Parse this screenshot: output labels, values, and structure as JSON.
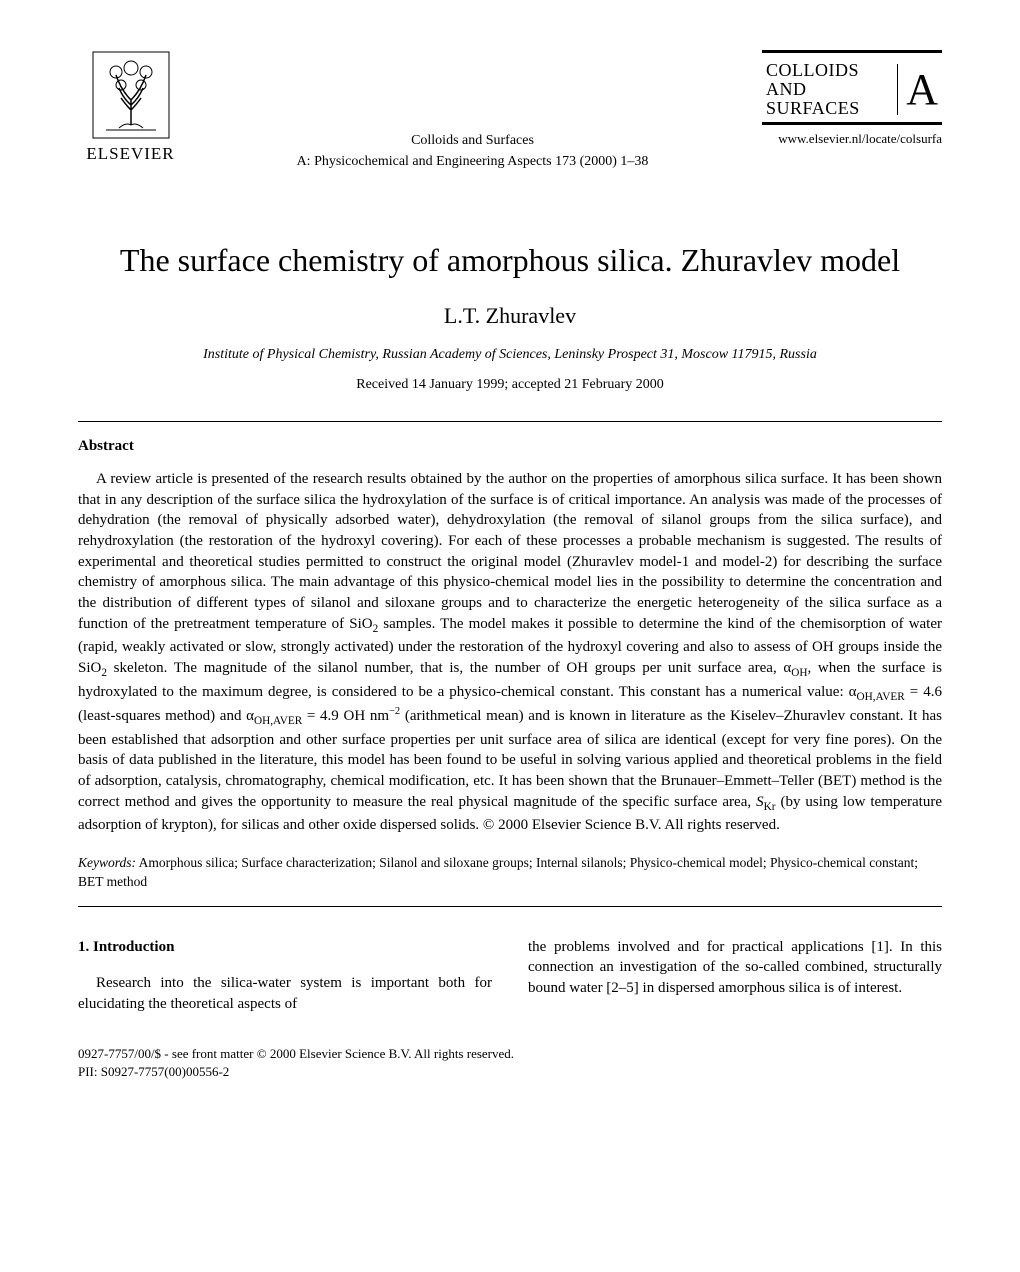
{
  "header": {
    "publisher": "ELSEVIER",
    "journal_line1": "Colloids and Surfaces",
    "journal_line2": "A: Physicochemical and Engineering Aspects 173 (2000) 1–38",
    "logo_line1": "COLLOIDS",
    "logo_line2": "AND",
    "logo_line3": "SURFACES",
    "logo_letter": "A",
    "url": "www.elsevier.nl/locate/colsurfa"
  },
  "article": {
    "title": "The surface chemistry of amorphous silica. Zhuravlev model",
    "author": "L.T. Zhuravlev",
    "affiliation": "Institute of Physical Chemistry, Russian Academy of Sciences, Leninsky Prospect 31, Moscow 117915, Russia",
    "dates": "Received 14 January 1999; accepted 21 February 2000"
  },
  "abstract": {
    "heading": "Abstract",
    "body": "A review article is presented of the research results obtained by the author on the properties of amorphous silica surface. It has been shown that in any description of the surface silica the hydroxylation of the surface is of critical importance. An analysis was made of the processes of dehydration (the removal of physically adsorbed water), dehydroxylation (the removal of silanol groups from the silica surface), and rehydroxylation (the restoration of the hydroxyl covering). For each of these processes a probable mechanism is suggested. The results of experimental and theoretical studies permitted to construct the original model (Zhuravlev model-1 and model-2) for describing the surface chemistry of amorphous silica. The main advantage of this physico-chemical model lies in the possibility to determine the concentration and the distribution of different types of silanol and siloxane groups and to characterize the energetic heterogeneity of the silica surface as a function of the pretreatment temperature of SiO₂ samples. The model makes it possible to determine the kind of the chemisorption of water (rapid, weakly activated or slow, strongly activated) under the restoration of the hydroxyl covering and also to assess of OH groups inside the SiO₂ skeleton. The magnitude of the silanol number, that is, the number of OH groups per unit surface area, αOH, when the surface is hydroxylated to the maximum degree, is considered to be a physico-chemical constant. This constant has a numerical value: αOH,AVER = 4.6 (least-squares method) and αOH,AVER = 4.9 OH nm⁻² (arithmetical mean) and is known in literature as the Kiselev–Zhuravlev constant. It has been established that adsorption and other surface properties per unit surface area of silica are identical (except for very fine pores). On the basis of data published in the literature, this model has been found to be useful in solving various applied and theoretical problems in the field of adsorption, catalysis, chromatography, chemical modification, etc. It has been shown that the Brunauer–Emmett–Teller (BET) method is the correct method and gives the opportunity to measure the real physical magnitude of the specific surface area, SKr (by using low temperature adsorption of krypton), for silicas and other oxide dispersed solids. © 2000 Elsevier Science B.V. All rights reserved."
  },
  "keywords": {
    "label": "Keywords:",
    "content": " Amorphous silica; Surface characterization; Silanol and siloxane groups; Internal silanols; Physico-chemical model; Physico-chemical constant; BET method"
  },
  "intro": {
    "heading": "1. Introduction",
    "col1": "Research into the silica-water system is important both for elucidating the theoretical aspects of",
    "col2": "the problems involved and for practical applications [1]. In this connection an investigation of the so-called combined, structurally bound water [2–5] in dispersed amorphous silica is of interest."
  },
  "footer": {
    "line1": "0927-7757/00/$ - see front matter © 2000 Elsevier Science B.V. All rights reserved.",
    "line2": "PII: S0927-7757(00)00556-2"
  },
  "colors": {
    "text": "#000000",
    "background": "#ffffff"
  },
  "fonts": {
    "body": "Times New Roman",
    "title_size": 32,
    "author_size": 22,
    "body_size": 15,
    "footer_size": 13
  }
}
